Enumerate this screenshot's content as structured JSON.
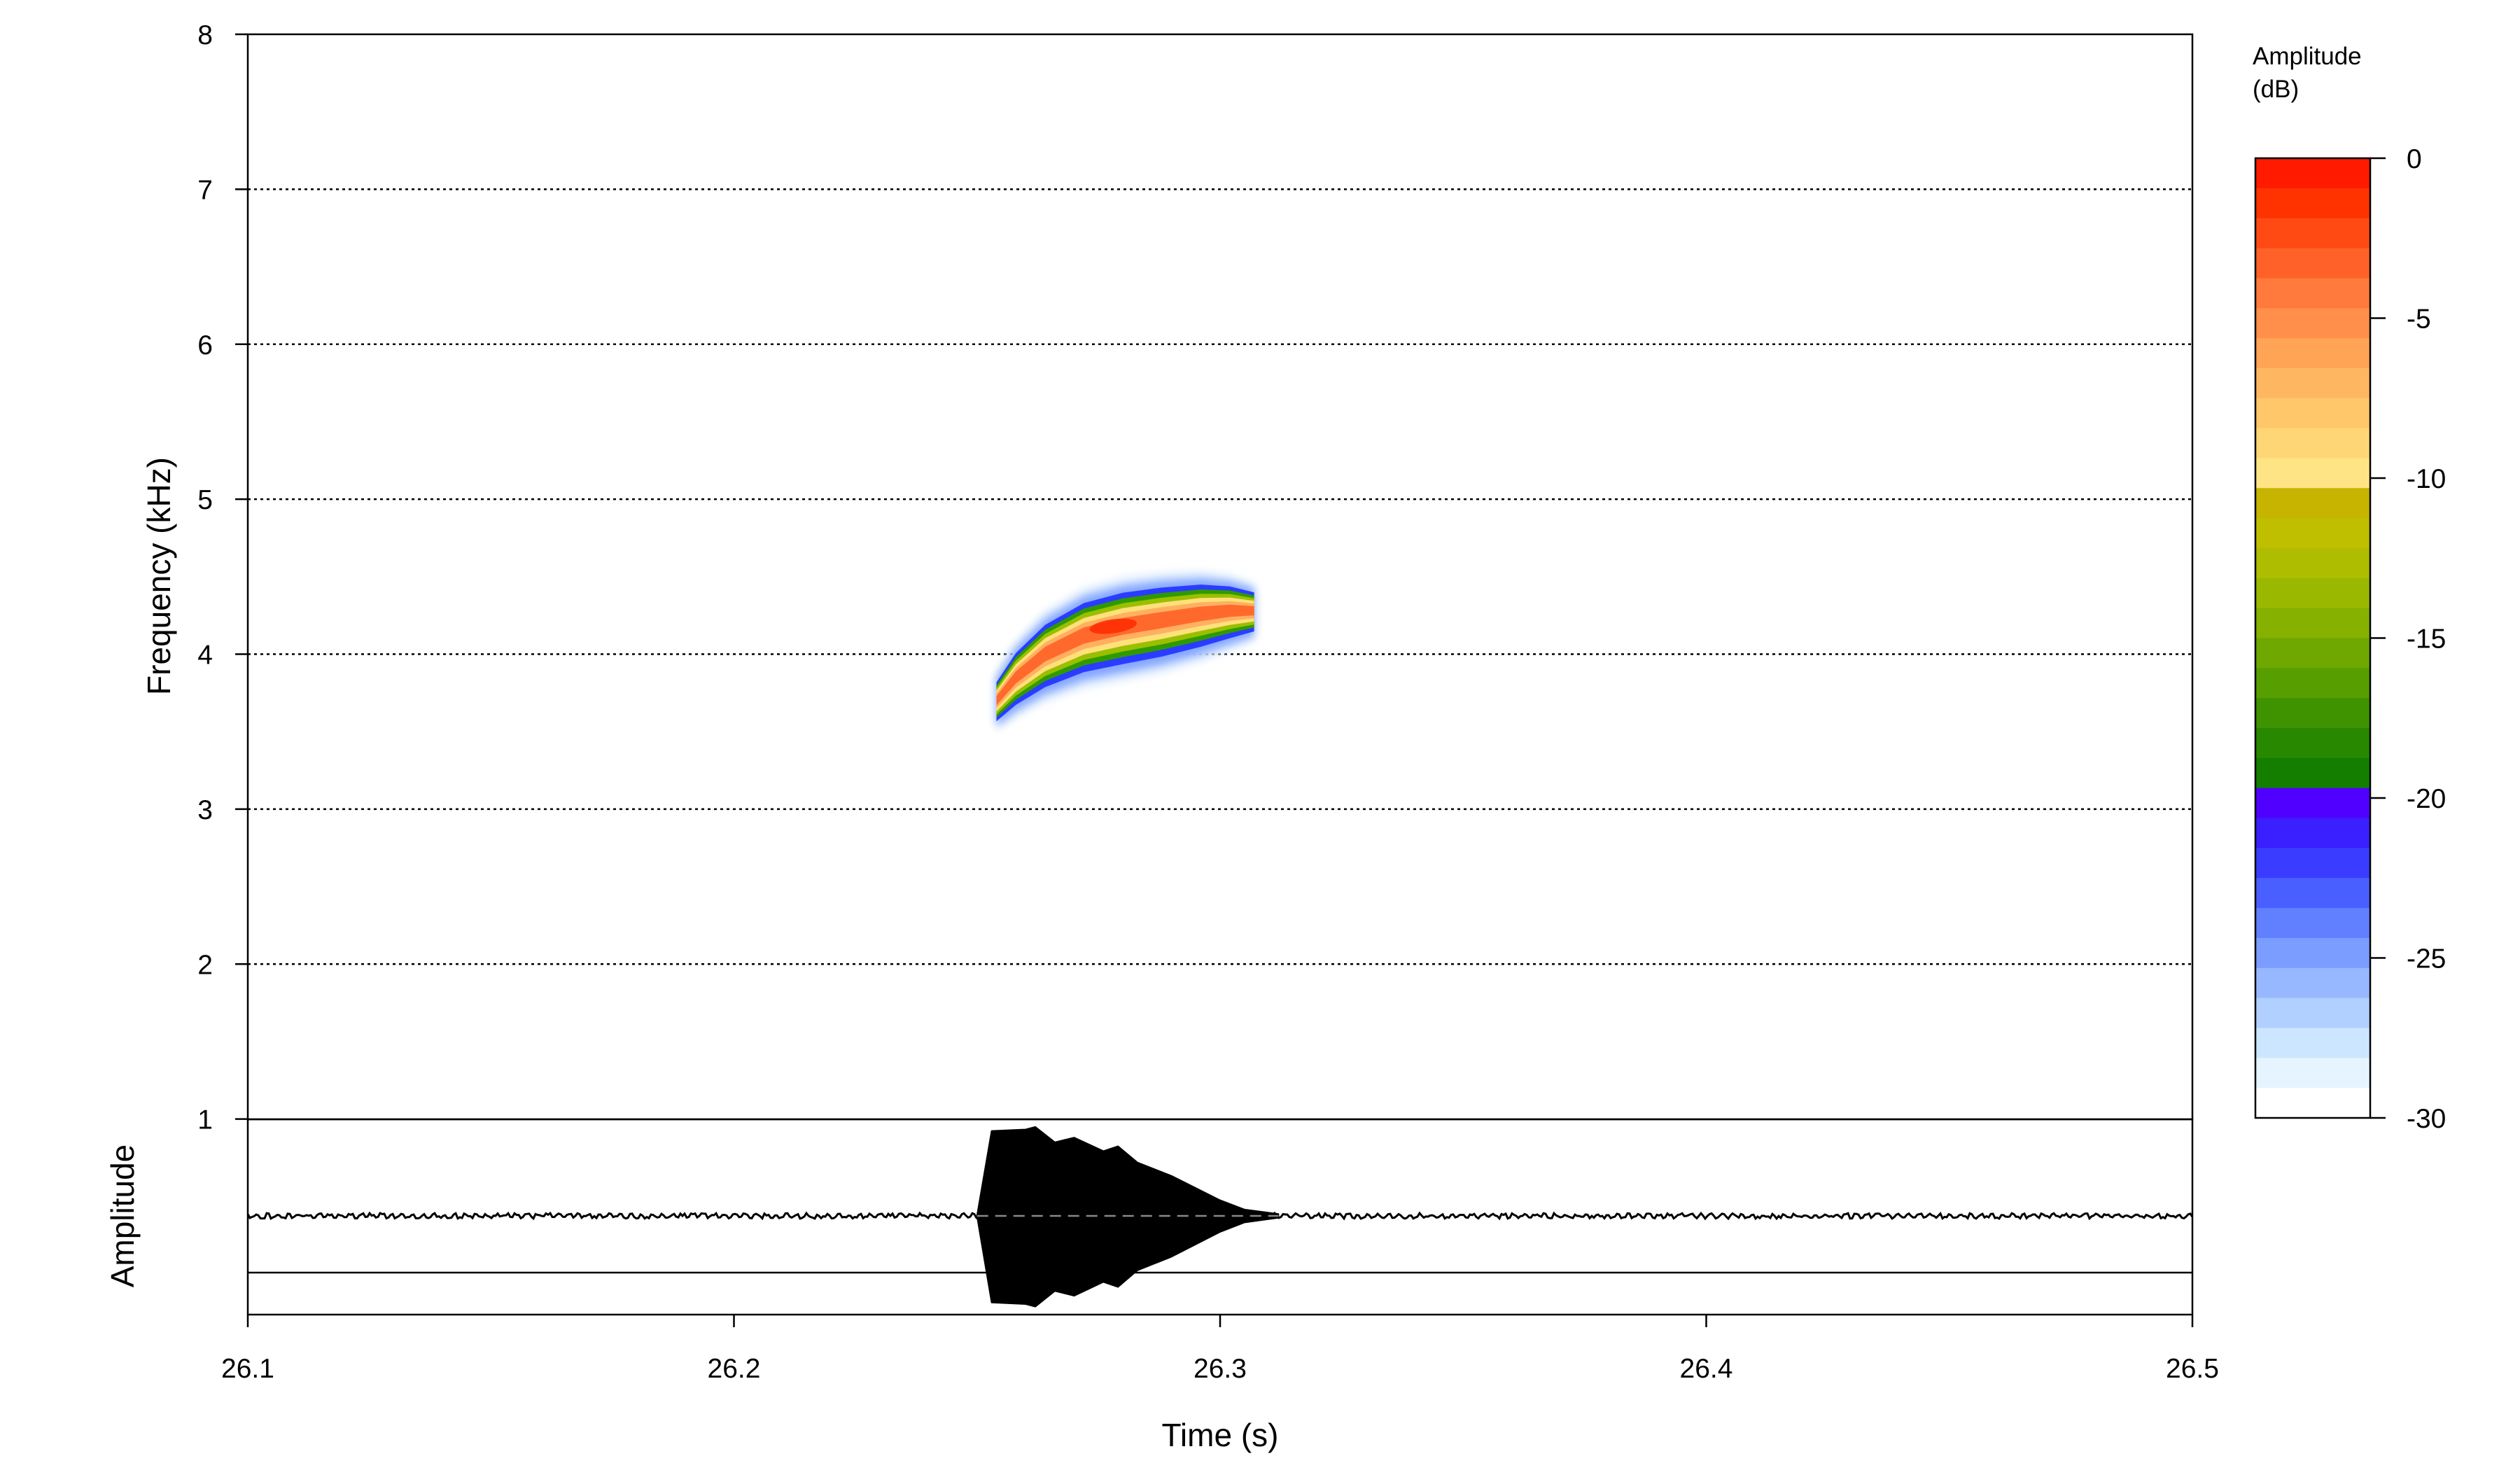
{
  "chart_data": {
    "type": "heatmap",
    "title": "",
    "xlabel": "Time (s)",
    "x_ticks": [
      26.1,
      26.2,
      26.3,
      26.4,
      26.5
    ],
    "x_tick_labels": [
      "26.1",
      "26.2",
      "26.3",
      "26.4",
      "26.5"
    ],
    "xlim": [
      26.1,
      26.5
    ],
    "spectrogram": {
      "ylabel": "Frequency (kHz)",
      "ylim": [
        0,
        8
      ],
      "y_ticks": [
        1,
        2,
        3,
        4,
        5,
        6,
        7,
        8
      ],
      "y_tick_labels": [
        "1",
        "2",
        "3",
        "4",
        "5",
        "6",
        "7",
        "8"
      ],
      "grid": "horizontal dotted at each kHz",
      "call": {
        "contour_time_s": [
          26.254,
          26.258,
          26.264,
          26.272,
          26.28,
          26.288,
          26.296,
          26.302,
          26.307
        ],
        "contour_freq_khz": [
          3.7,
          3.85,
          4.0,
          4.12,
          4.18,
          4.22,
          4.26,
          4.28,
          4.28
        ],
        "peak_time_s": 26.278,
        "peak_freq_khz": 4.18,
        "peak_db": -1
      }
    },
    "oscillogram": {
      "ylabel": "Amplitude",
      "envelope_time_s": [
        26.25,
        26.253,
        26.26,
        26.262,
        26.266,
        26.27,
        26.276,
        26.279,
        26.283,
        26.29,
        26.3,
        26.305,
        26.312
      ],
      "envelope_amplitude": [
        0.0,
        0.9,
        1.0,
        0.95,
        0.8,
        0.9,
        0.68,
        0.78,
        0.6,
        0.42,
        0.18,
        0.07,
        0.02
      ],
      "noise_level": 0.03
    },
    "colorbar": {
      "label_line1": "Amplitude",
      "label_line2": "(dB)",
      "range": [
        -30,
        0
      ],
      "ticks": [
        0,
        -5,
        -10,
        -15,
        -20,
        -25,
        -30
      ],
      "tick_labels": [
        "0",
        "-5",
        "-10",
        "-15",
        "-20",
        "-25",
        "-30"
      ],
      "colors_top_to_bottom": [
        "#ff1a00",
        "#ff3300",
        "#ff4a14",
        "#ff6128",
        "#ff7a3c",
        "#ff8f4a",
        "#ffa355",
        "#ffb660",
        "#ffc76a",
        "#ffd676",
        "#ffe485",
        "#c6b400",
        "#bfbf00",
        "#aebd00",
        "#9ab800",
        "#86b100",
        "#6ea800",
        "#579e00",
        "#3f9300",
        "#288800",
        "#137e00",
        "#4f00ff",
        "#3a1fff",
        "#3a3dff",
        "#4a5fff",
        "#6080ff",
        "#7a9dff",
        "#97b8ff",
        "#b2d0ff",
        "#cce6ff",
        "#e6f4ff",
        "#ffffff"
      ]
    }
  }
}
